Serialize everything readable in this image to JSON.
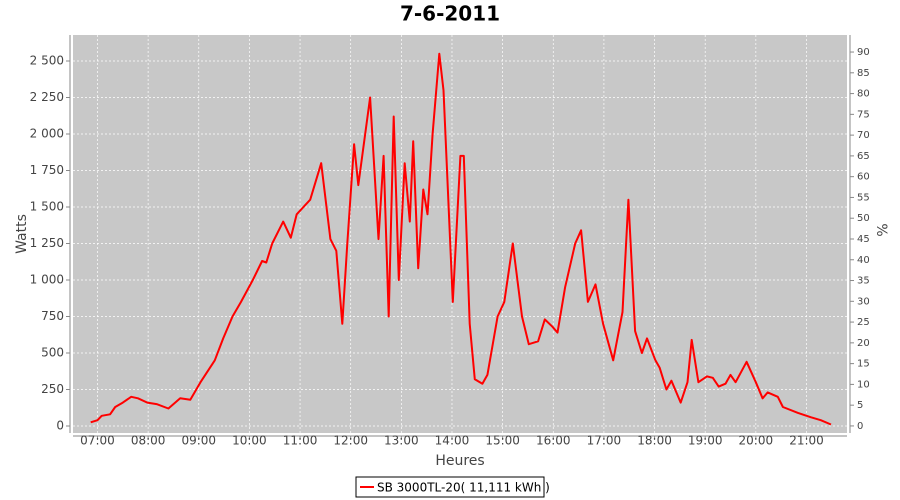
{
  "chart_data": {
    "type": "line",
    "title": "7-6-2011",
    "x_label": "Heures",
    "y_label": "Watts",
    "y2_label": "%",
    "x": [
      "06:52",
      "07:00",
      "07:05",
      "07:15",
      "07:21",
      "07:30",
      "07:40",
      "07:48",
      "07:59",
      "08:10",
      "08:24",
      "08:38",
      "08:50",
      "09:02",
      "09:19",
      "09:29",
      "09:40",
      "09:50",
      "10:04",
      "10:15",
      "10:20",
      "10:27",
      "10:40",
      "10:49",
      "10:56",
      "11:12",
      "11:25",
      "11:36",
      "11:43",
      "11:50",
      "11:56",
      "12:04",
      "12:09",
      "12:23",
      "12:33",
      "12:39",
      "12:45",
      "12:51",
      "12:57",
      "13:04",
      "13:10",
      "13:14",
      "13:20",
      "13:26",
      "13:31",
      "13:37",
      "13:45",
      "13:50",
      "14:01",
      "14:10",
      "14:14",
      "14:21",
      "14:27",
      "14:36",
      "14:42",
      "14:54",
      "15:02",
      "15:12",
      "15:23",
      "15:31",
      "15:42",
      "15:50",
      "15:59",
      "16:05",
      "16:14",
      "16:26",
      "16:33",
      "16:41",
      "16:50",
      "16:59",
      "17:11",
      "17:22",
      "17:29",
      "17:37",
      "17:45",
      "17:51",
      "18:01",
      "18:06",
      "18:14",
      "18:20",
      "18:31",
      "18:39",
      "18:44",
      "18:52",
      "19:02",
      "19:09",
      "19:16",
      "19:24",
      "19:30",
      "19:36",
      "19:49",
      "20:00",
      "20:08",
      "20:14",
      "20:26",
      "20:32",
      "20:50",
      "21:05",
      "21:17",
      "21:29"
    ],
    "series": [
      {
        "name": "SB 3000TL-20( 11,111 kWh  )",
        "color": "#ff0000",
        "values": [
          25,
          40,
          70,
          80,
          130,
          160,
          200,
          190,
          160,
          150,
          120,
          190,
          180,
          300,
          450,
          600,
          750,
          850,
          1000,
          1130,
          1120,
          1250,
          1400,
          1290,
          1450,
          1550,
          1800,
          1280,
          1200,
          700,
          1250,
          1930,
          1650,
          2250,
          1280,
          1850,
          750,
          2120,
          1000,
          1800,
          1400,
          1950,
          1080,
          1620,
          1450,
          2000,
          2550,
          2300,
          850,
          1850,
          1850,
          700,
          320,
          290,
          350,
          750,
          850,
          1250,
          750,
          560,
          580,
          730,
          680,
          640,
          950,
          1250,
          1340,
          850,
          970,
          700,
          450,
          780,
          1550,
          650,
          500,
          600,
          450,
          400,
          250,
          310,
          160,
          300,
          590,
          300,
          340,
          330,
          270,
          290,
          350,
          300,
          440,
          300,
          190,
          230,
          200,
          130,
          90,
          60,
          40,
          10
        ]
      }
    ],
    "xlim": [
      "06:31",
      "21:48"
    ],
    "xticks": [
      "07:00",
      "08:00",
      "09:00",
      "10:00",
      "11:00",
      "12:00",
      "13:00",
      "14:00",
      "15:00",
      "16:00",
      "17:00",
      "18:00",
      "19:00",
      "20:00",
      "21:00"
    ],
    "ylim": [
      -48,
      2678
    ],
    "yticks": [
      0,
      250,
      500,
      750,
      {
        "value": 1000,
        "label": "1 000"
      },
      {
        "value": 1250,
        "label": "1 250"
      },
      {
        "value": 1500,
        "label": "1 500"
      },
      {
        "value": 1750,
        "label": "1 750"
      },
      {
        "value": 2000,
        "label": "2 000"
      },
      {
        "value": 2250,
        "label": "2 250"
      },
      {
        "value": 2500,
        "label": "2 500"
      }
    ],
    "y2lim": [
      -1.7,
      94.1
    ],
    "y2ticks": [
      0,
      5,
      10,
      15,
      20,
      25,
      30,
      35,
      40,
      45,
      50,
      55,
      60,
      65,
      70,
      75,
      80,
      85,
      90
    ],
    "grid": true
  }
}
